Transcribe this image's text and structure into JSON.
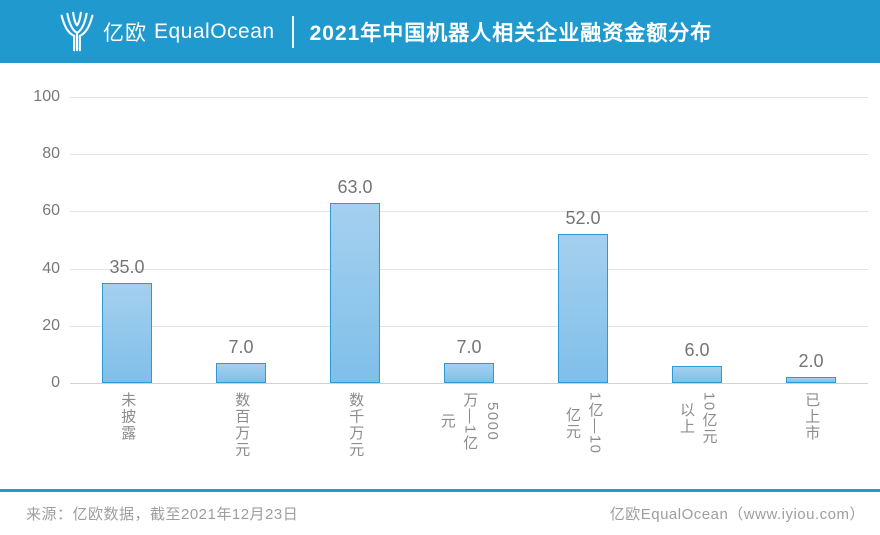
{
  "header": {
    "brand_cn": "亿欧",
    "brand_en": "EqualOcean",
    "title": "2021年中国机器人相关企业融资金额分布"
  },
  "chart_data": {
    "type": "bar",
    "title": "2021年中国机器人相关企业融资金额分布",
    "categories": [
      "未披露",
      "数百万元",
      "数千万元",
      "5000万—1亿元",
      "1亿—10亿元",
      "10亿元以上",
      "已上市"
    ],
    "values": [
      35.0,
      7.0,
      63.0,
      7.0,
      52.0,
      6.0,
      2.0
    ],
    "value_labels": [
      "35.0",
      "7.0",
      "63.0",
      "7.0",
      "52.0",
      "6.0",
      "2.0"
    ],
    "category_display": [
      "未披露",
      "数百万元",
      "数千万元",
      "5000\n万—1亿\n元",
      "1亿—10\n亿元",
      "10亿元\n以上",
      "已上市"
    ],
    "xlabel": "",
    "ylabel": "",
    "ylim": [
      0,
      100
    ],
    "y_ticks": [
      0,
      20,
      40,
      60,
      80,
      100
    ],
    "y_tick_labels": [
      "100",
      "80",
      "60",
      "40",
      "20",
      "0"
    ],
    "grid": true,
    "legend": false,
    "bar_fill_top": "#a5d0ef",
    "bar_fill_bottom": "#7fbfe9",
    "bar_border": "#2e9ad4"
  },
  "footer": {
    "source": "来源：亿欧数据，截至2021年12月23日",
    "credit": "亿欧EqualOcean（www.iyiou.com）"
  },
  "colors": {
    "brand_blue": "#209ace",
    "grid_line": "#e4e4e4",
    "axis_line": "#d2d2d2",
    "label_gray": "#757575",
    "footer_gray": "#9e9e9e"
  }
}
